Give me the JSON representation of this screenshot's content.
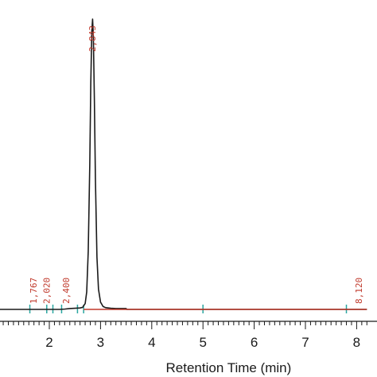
{
  "chart_data": {
    "type": "line",
    "xlabel": "Retention Time (min)",
    "ylabel": "",
    "xlim": [
      1.0,
      8.2
    ],
    "ylim": [
      0,
      100
    ],
    "grid": false,
    "x_ticks": [
      2,
      3,
      4,
      5,
      6,
      7,
      8
    ],
    "peak_labels": [
      {
        "x": 1.767,
        "text": "1,767"
      },
      {
        "x": 2.02,
        "text": "2,020"
      },
      {
        "x": 2.4,
        "text": "2,400"
      },
      {
        "x": 8.12,
        "text": "8,120"
      },
      {
        "x": 2.84,
        "text": "2,843"
      }
    ],
    "integration_markers": [
      1.62,
      1.95,
      2.07,
      2.24,
      2.55,
      2.67,
      5.0,
      7.8
    ],
    "series": [
      {
        "color": "#1a1a1a",
        "x": [
          1.0,
          2.2,
          2.3,
          2.4,
          2.5,
          2.6,
          2.65,
          2.7,
          2.73,
          2.76,
          2.79,
          2.81,
          2.83,
          2.845,
          2.86,
          2.88,
          2.9,
          2.93,
          2.96,
          3.0,
          3.05,
          3.1,
          3.2,
          3.3,
          3.5,
          3.51,
          8.2
        ],
        "y": [
          0,
          0,
          0.1,
          0.3,
          0.4,
          0.5,
          0.7,
          2,
          6,
          20,
          50,
          78,
          96,
          100,
          94,
          72,
          45,
          18,
          7,
          2.5,
          1,
          0.6,
          0.4,
          0.3,
          0.3,
          0,
          0
        ]
      },
      {
        "color": "#c0392b",
        "x": [
          2.67,
          8.2
        ],
        "y": [
          0,
          0
        ]
      }
    ]
  }
}
